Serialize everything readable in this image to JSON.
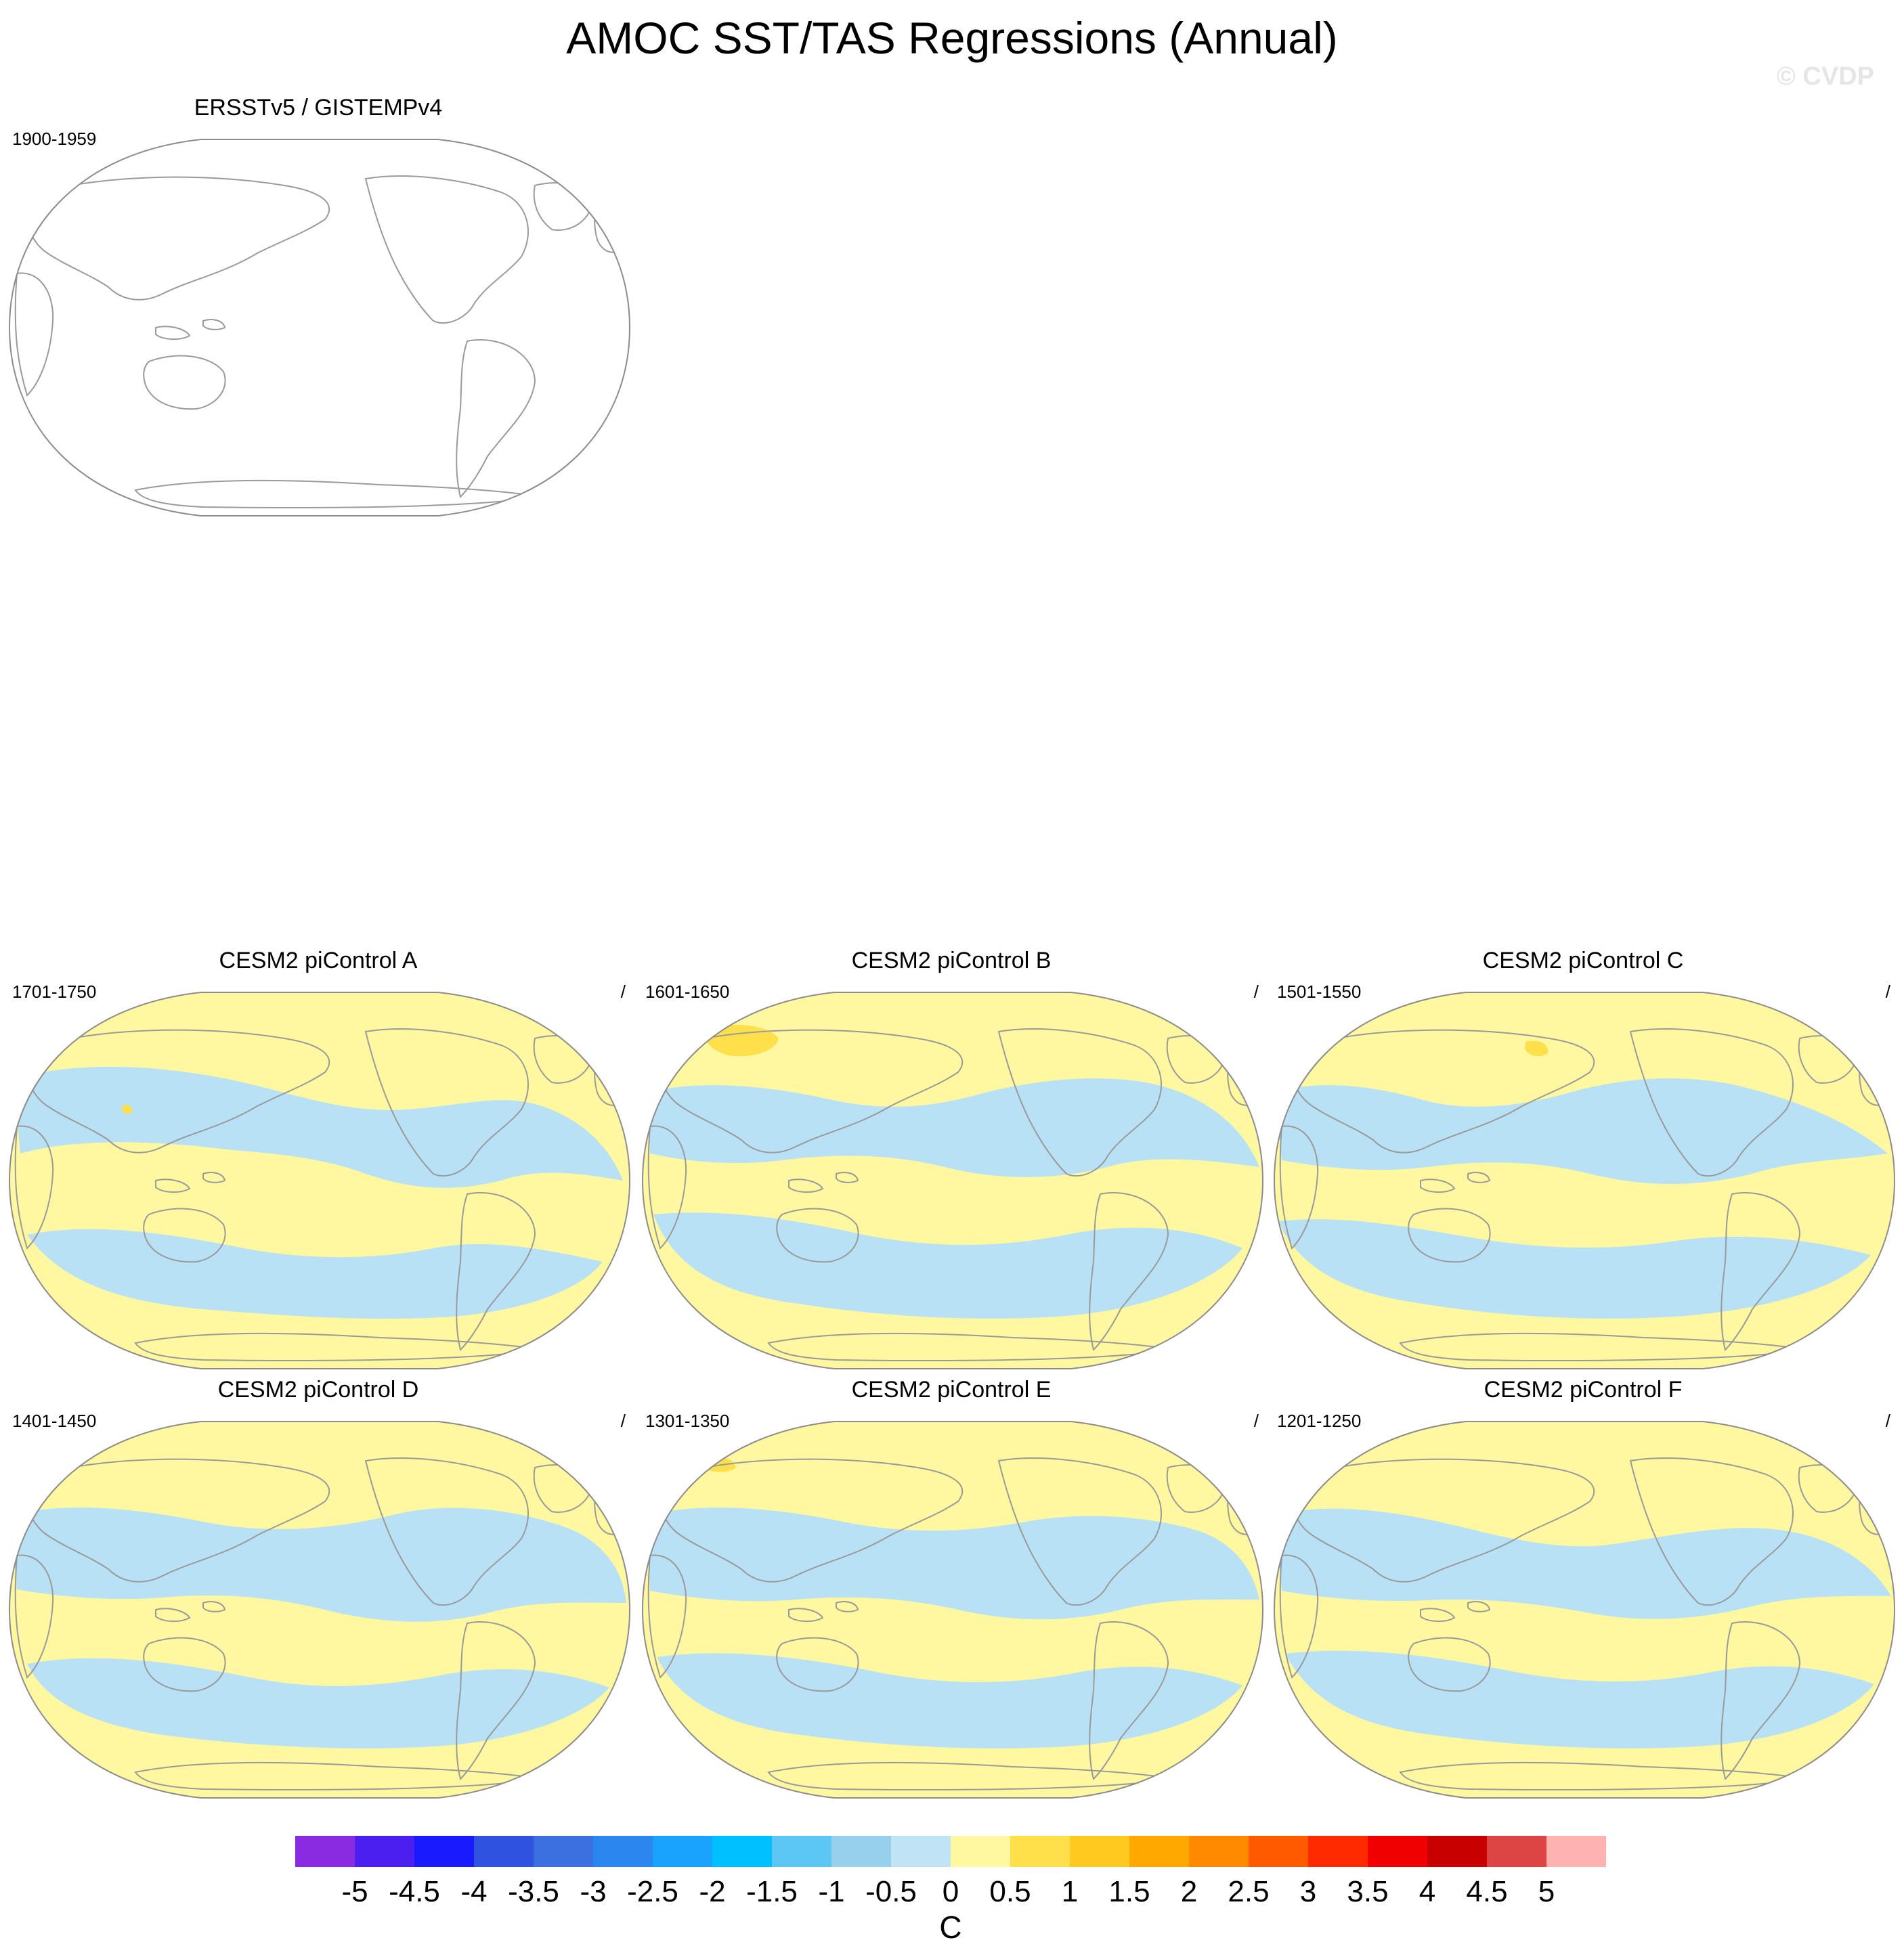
{
  "title": "AMOC SST/TAS Regressions (Annual)",
  "watermark": "© CVDP",
  "colors": {
    "land_outline": "#9a9a9a",
    "globe_outline": "#8c8c8c",
    "positive_fill": "#fff8a0",
    "negative_fill": "#b8e1f5",
    "hotspot_fill": "#ffe04a"
  },
  "panels": [
    {
      "id": "obs",
      "title": "ERSSTv5 / GISTEMPv4",
      "years": "1900-1959",
      "slash": "",
      "filled": false
    },
    {
      "id": "A",
      "title": "CESM2 piControl A",
      "years": "1701-1750",
      "slash": "/",
      "filled": true
    },
    {
      "id": "B",
      "title": "CESM2 piControl B",
      "years": "1601-1650",
      "slash": "/",
      "filled": true
    },
    {
      "id": "C",
      "title": "CESM2 piControl C",
      "years": "1501-1550",
      "slash": "/",
      "filled": true
    },
    {
      "id": "D",
      "title": "CESM2 piControl D",
      "years": "1401-1450",
      "slash": "/",
      "filled": true
    },
    {
      "id": "E",
      "title": "CESM2 piControl E",
      "years": "1301-1350",
      "slash": "/",
      "filled": true
    },
    {
      "id": "F",
      "title": "CESM2 piControl F",
      "years": "1201-1250",
      "slash": "/",
      "filled": true
    }
  ],
  "chart_data": {
    "type": "heatmap",
    "projection": "Robinson (Pacific-centered)",
    "colorbar": {
      "units": "C",
      "levels": [
        -5,
        -4.5,
        -4,
        -3.5,
        -3,
        -2.5,
        -2,
        -1.5,
        -1,
        -0.5,
        0,
        0.5,
        1,
        1.5,
        2,
        2.5,
        3,
        3.5,
        4,
        4.5,
        5
      ],
      "tick_labels": [
        "-5",
        "-4.5",
        "-4",
        "-3.5",
        "-3",
        "-2.5",
        "-2",
        "-1.5",
        "-1",
        "-0.5",
        "0",
        "0.5",
        "1",
        "1.5",
        "2",
        "2.5",
        "3",
        "3.5",
        "4",
        "4.5",
        "5"
      ],
      "colors": [
        "#8a2be2",
        "#4a1ff0",
        "#1a1aff",
        "#2f52e0",
        "#3c6fe0",
        "#2b86f0",
        "#1aa2ff",
        "#00c0ff",
        "#5cc7f5",
        "#96d0ec",
        "#c0e4f6",
        "#fff8a0",
        "#ffe04a",
        "#ffc91f",
        "#ffa800",
        "#ff8a00",
        "#ff5a00",
        "#ff2a00",
        "#f00000",
        "#c80000",
        "#dd4444",
        "#ffb2b2"
      ]
    }
  }
}
